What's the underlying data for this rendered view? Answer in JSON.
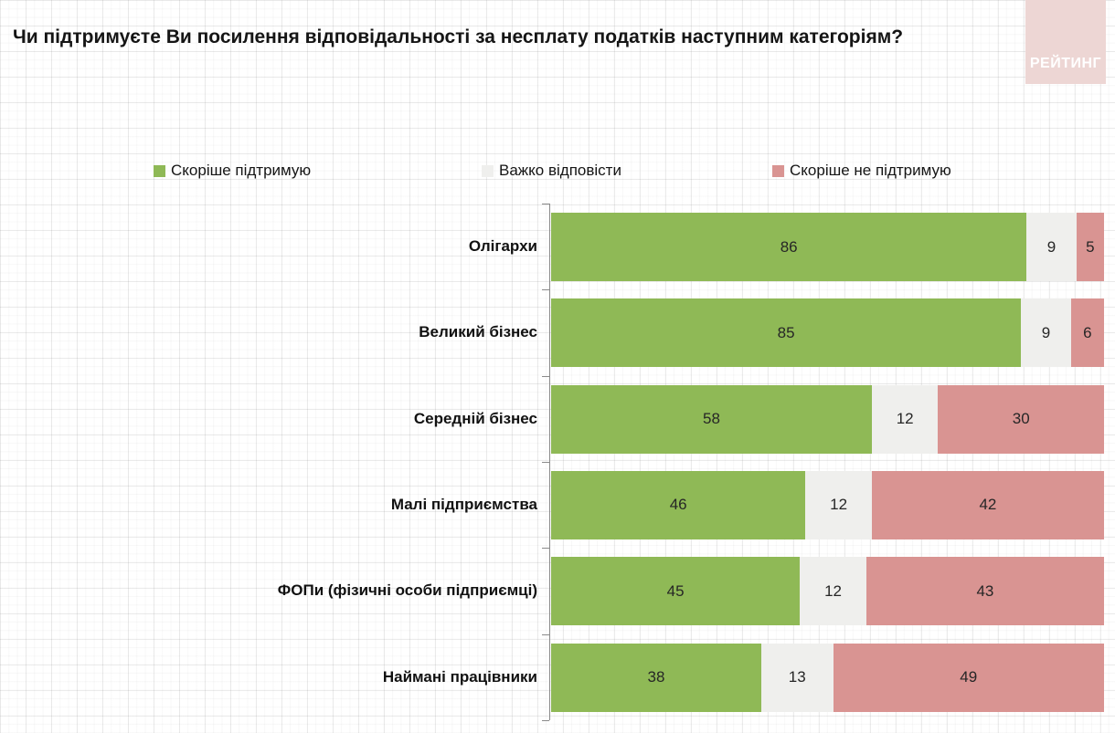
{
  "title": "Чи підтримуєте Ви посилення відповідальності за несплату податків наступним категоріям?",
  "logo": {
    "text": "РЕЙТИНГ",
    "bg_color": "#EDD6D4",
    "text_color": "#FFFFFF"
  },
  "legend": [
    {
      "label": "Скоріше підтримую",
      "color": "#8FB956"
    },
    {
      "label": "Важко відповісти",
      "color": "#EFEFED"
    },
    {
      "label": "Скоріше не підтримую",
      "color": "#D99492"
    }
  ],
  "chart_data": {
    "type": "bar",
    "orientation": "horizontal",
    "stacked": true,
    "title": "Чи підтримуєте Ви посилення відповідальності за несплату податків наступним категоріям?",
    "categories": [
      "Олігархи",
      "Великий бізнес",
      "Середній бізнес",
      "Малі підприємства",
      "ФОПи (фізичні особи підприємці)",
      "Наймані працівники"
    ],
    "series": [
      {
        "name": "Скоріше підтримую",
        "color": "#8FB956",
        "values": [
          86,
          85,
          58,
          46,
          45,
          38
        ]
      },
      {
        "name": "Важко відповісти",
        "color": "#EFEFED",
        "values": [
          9,
          9,
          12,
          12,
          12,
          13
        ]
      },
      {
        "name": "Скоріше не підтримую",
        "color": "#D99492",
        "values": [
          5,
          6,
          30,
          42,
          43,
          49
        ]
      }
    ],
    "xlim": [
      0,
      100
    ],
    "value_labels": true,
    "legend_position": "top",
    "grid": "graph-paper-background"
  }
}
